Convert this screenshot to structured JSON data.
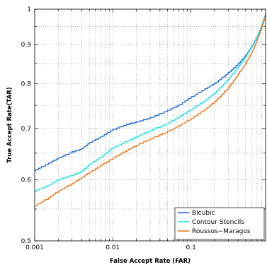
{
  "chart_data": {
    "type": "line",
    "title": "",
    "xlabel": "False Accept Rate (FAR)",
    "ylabel": "True Accept Rate(TAR)",
    "xscale": "log",
    "yscale": "log",
    "xlim": [
      0.001,
      0.9
    ],
    "ylim": [
      0.5,
      1.0
    ],
    "x_ticks": [
      0.001,
      0.01,
      0.1
    ],
    "x_tick_labels": [
      "0.001",
      "0.01",
      "0.1"
    ],
    "y_ticks": [
      0.5,
      0.6,
      0.7,
      0.8,
      0.9,
      1.0
    ],
    "y_tick_labels": [
      "0.5",
      "0.6",
      "0.7",
      "0.8",
      "0.9",
      "1"
    ],
    "grid": true,
    "legend_position": "bottom-right",
    "series": [
      {
        "name": "Bicubic",
        "color": "#1f6fd6",
        "x": [
          0.001,
          0.0015,
          0.002,
          0.003,
          0.004,
          0.005,
          0.007,
          0.01,
          0.015,
          0.02,
          0.03,
          0.05,
          0.07,
          0.1,
          0.15,
          0.2,
          0.3,
          0.4,
          0.5,
          0.6,
          0.7,
          0.8,
          0.9
        ],
        "y": [
          0.617,
          0.63,
          0.64,
          0.652,
          0.658,
          0.67,
          0.682,
          0.697,
          0.708,
          0.713,
          0.722,
          0.738,
          0.75,
          0.768,
          0.787,
          0.8,
          0.826,
          0.848,
          0.87,
          0.894,
          0.92,
          0.95,
          0.985
        ]
      },
      {
        "name": "Contour Stencils",
        "color": "#22e0e8",
        "x": [
          0.001,
          0.0015,
          0.002,
          0.003,
          0.004,
          0.005,
          0.007,
          0.01,
          0.015,
          0.02,
          0.03,
          0.05,
          0.07,
          0.1,
          0.15,
          0.2,
          0.3,
          0.4,
          0.5,
          0.6,
          0.7,
          0.8,
          0.9
        ],
        "y": [
          0.58,
          0.59,
          0.6,
          0.608,
          0.615,
          0.628,
          0.642,
          0.66,
          0.673,
          0.682,
          0.695,
          0.71,
          0.724,
          0.74,
          0.76,
          0.777,
          0.81,
          0.84,
          0.867,
          0.893,
          0.92,
          0.95,
          0.985
        ]
      },
      {
        "name": "Roussos−Maragos",
        "color": "#f07a1c",
        "x": [
          0.001,
          0.0015,
          0.002,
          0.003,
          0.004,
          0.005,
          0.007,
          0.01,
          0.015,
          0.02,
          0.03,
          0.05,
          0.07,
          0.1,
          0.15,
          0.2,
          0.3,
          0.4,
          0.5,
          0.6,
          0.7,
          0.8,
          0.9
        ],
        "y": [
          0.555,
          0.568,
          0.58,
          0.593,
          0.604,
          0.613,
          0.626,
          0.64,
          0.655,
          0.665,
          0.678,
          0.693,
          0.705,
          0.72,
          0.74,
          0.757,
          0.79,
          0.822,
          0.85,
          0.878,
          0.91,
          0.945,
          0.98
        ]
      }
    ]
  }
}
